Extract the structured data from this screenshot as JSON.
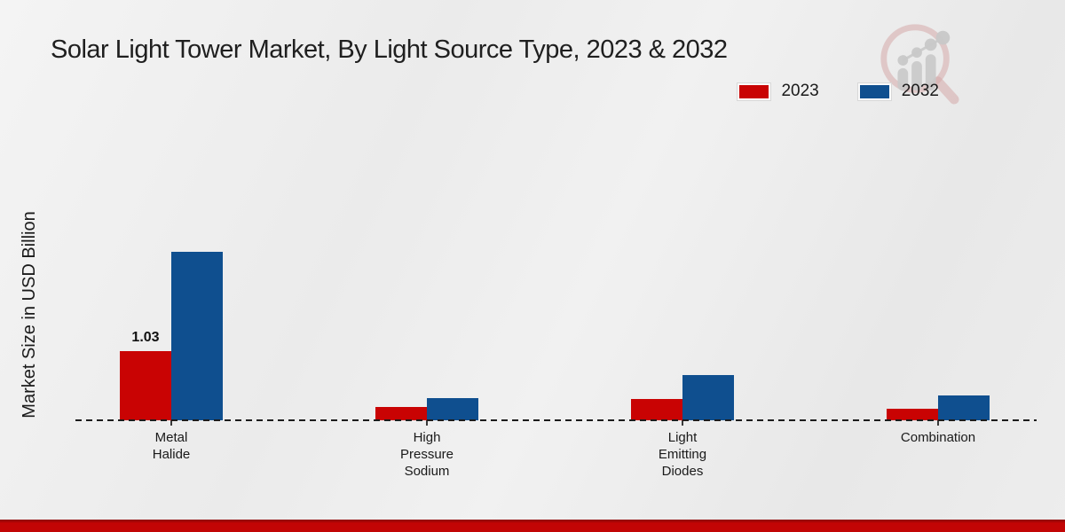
{
  "chart": {
    "title": "Solar Light Tower Market, By Light Source Type, 2023 & 2032",
    "y_axis_label": "Market Size in USD Billion"
  },
  "legend": {
    "items": [
      {
        "label": "2023",
        "color": "#c90303"
      },
      {
        "label": "2032",
        "color": "#0f4f8f"
      }
    ]
  },
  "category_display_labels": [
    "Metal\nHalide",
    "High\nPressure\nSodium",
    "Light\nEmitting\nDiodes",
    "Combination"
  ],
  "chart_data": {
    "type": "bar",
    "title": "Solar Light Tower Market, By Light Source Type, 2023 & 2032",
    "xlabel": "",
    "ylabel": "Market Size in USD Billion",
    "categories": [
      "Metal Halide",
      "High Pressure Sodium",
      "Light Emitting Diodes",
      "Combination"
    ],
    "series": [
      {
        "name": "2023",
        "color": "#c90303",
        "values": [
          1.03,
          0.2,
          0.32,
          0.17
        ],
        "value_labels": [
          "1.03",
          "",
          "",
          ""
        ]
      },
      {
        "name": "2032",
        "color": "#0f4f8f",
        "values": [
          2.52,
          0.33,
          0.68,
          0.37
        ],
        "value_labels": [
          "",
          "",
          "",
          ""
        ]
      }
    ],
    "ylim": [
      0,
      2.8
    ],
    "grid": false,
    "legend_position": "top-right",
    "baseline_style": "dashed",
    "watermark": "magnifier-bar-chart-logo"
  },
  "icons": {
    "logo": "magnifier-bar-chart-logo"
  },
  "colors": {
    "series_2023": "#c90303",
    "series_2032": "#0f4f8f",
    "footer_strip": "#c20505",
    "background": "#ededed",
    "text": "#1a1a1a"
  }
}
